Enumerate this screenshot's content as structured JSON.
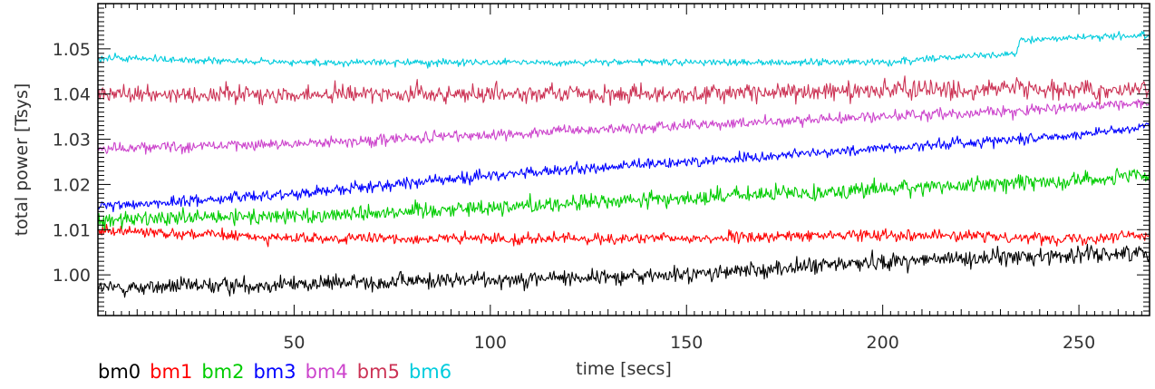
{
  "chart_data": {
    "type": "line",
    "title": "",
    "xlabel": "time [secs]",
    "ylabel": "total power [Tsys]",
    "xlim": [
      0,
      268
    ],
    "ylim": [
      0.991,
      1.06
    ],
    "xticks": [
      50,
      100,
      150,
      200,
      250
    ],
    "xtick_labels": [
      "50",
      "100",
      "150",
      "200",
      "250"
    ],
    "yticks": [
      1.0,
      1.01,
      1.02,
      1.03,
      1.04,
      1.05
    ],
    "ytick_labels": [
      "1.00",
      "1.01",
      "1.02",
      "1.03",
      "1.04",
      "1.05"
    ],
    "grid": false,
    "legend_placement": "bottom-left",
    "series": [
      {
        "name": "bm0",
        "color": "#000000",
        "x": [
          0,
          50,
          100,
          150,
          200,
          235,
          268
        ],
        "y": [
          0.997,
          0.998,
          0.999,
          1.0,
          1.003,
          1.004,
          1.005
        ],
        "noise": 0.0012
      },
      {
        "name": "bm1",
        "color": "#ff0000",
        "x": [
          0,
          50,
          100,
          150,
          200,
          250,
          268
        ],
        "y": [
          1.01,
          1.008,
          1.008,
          1.008,
          1.009,
          1.008,
          1.009
        ],
        "noise": 0.0008
      },
      {
        "name": "bm2",
        "color": "#00cc00",
        "x": [
          0,
          50,
          100,
          150,
          200,
          250,
          268
        ],
        "y": [
          1.012,
          1.013,
          1.015,
          1.017,
          1.019,
          1.021,
          1.022
        ],
        "noise": 0.0012
      },
      {
        "name": "bm3",
        "color": "#0000ff",
        "x": [
          0,
          50,
          100,
          150,
          200,
          250,
          268
        ],
        "y": [
          1.015,
          1.018,
          1.022,
          1.025,
          1.028,
          1.031,
          1.033
        ],
        "noise": 0.0008
      },
      {
        "name": "bm4",
        "color": "#cc44cc",
        "x": [
          0,
          50,
          100,
          150,
          200,
          250,
          268
        ],
        "y": [
          1.028,
          1.029,
          1.031,
          1.033,
          1.035,
          1.037,
          1.038
        ],
        "noise": 0.0008
      },
      {
        "name": "bm5",
        "color": "#cc3355",
        "x": [
          0,
          50,
          100,
          150,
          200,
          250,
          268
        ],
        "y": [
          1.04,
          1.04,
          1.04,
          1.04,
          1.041,
          1.041,
          1.041
        ],
        "noise": 0.0013
      },
      {
        "name": "bm6",
        "color": "#00ccdd",
        "x": [
          0,
          50,
          100,
          150,
          200,
          234,
          235,
          268
        ],
        "y": [
          1.048,
          1.047,
          1.047,
          1.047,
          1.047,
          1.049,
          1.052,
          1.053
        ],
        "noise": 0.0005
      }
    ]
  }
}
